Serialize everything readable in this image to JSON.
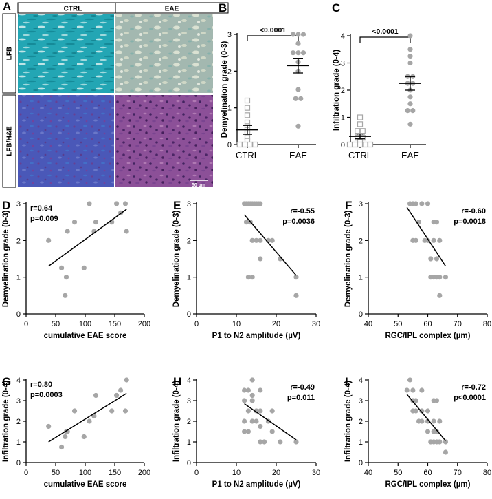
{
  "chart_data": [
    {
      "id": "A",
      "type": "image-panel",
      "label": "A",
      "column_headers": [
        "CTRL",
        "EAE"
      ],
      "row_labels": [
        "LFB",
        "LFB/H&E"
      ],
      "scale_bar": "50 µm",
      "colors": {
        "lfb_ctrl": "#23a6b4",
        "lfb_eae": "#a3b8b0",
        "he_ctrl": "#4a58b8",
        "he_eae": "#8c5098"
      }
    },
    {
      "id": "B",
      "type": "scatter",
      "label": "B",
      "ylabel": "Demyelination grade (0-3)",
      "categories": [
        "CTRL",
        "EAE"
      ],
      "ylim": [
        0,
        3
      ],
      "yticks": [
        0,
        1,
        2,
        3
      ],
      "pvalue": "<0.0001",
      "groups": [
        {
          "name": "CTRL",
          "marker": "open-square",
          "mean": 0.4,
          "sem": 0.12,
          "values": [
            1.2,
            1.0,
            0.8,
            0.6,
            0.5,
            0.4,
            0.3,
            0.2,
            0.1,
            0,
            0,
            0,
            0
          ]
        },
        {
          "name": "EAE",
          "marker": "filled-circle",
          "mean": 2.15,
          "sem": 0.2,
          "values": [
            3,
            3,
            3,
            2.75,
            2.5,
            2.5,
            2.5,
            2.25,
            2,
            1.5,
            1.25,
            1.25,
            0.5
          ]
        }
      ]
    },
    {
      "id": "C",
      "type": "scatter",
      "label": "C",
      "ylabel": "Infiltration grade (0-4)",
      "categories": [
        "CTRL",
        "EAE"
      ],
      "ylim": [
        0,
        4
      ],
      "yticks": [
        0,
        1,
        2,
        3,
        4
      ],
      "pvalue": "<0.0001",
      "groups": [
        {
          "name": "CTRL",
          "marker": "open-square",
          "mean": 0.3,
          "sem": 0.09,
          "values": [
            1.0,
            0.75,
            0.5,
            0.5,
            0.3,
            0.25,
            0.25,
            0.1,
            0,
            0,
            0,
            0,
            0
          ]
        },
        {
          "name": "EAE",
          "marker": "filled-circle",
          "mean": 2.25,
          "sem": 0.25,
          "values": [
            4,
            3.5,
            3.25,
            3,
            2.5,
            2.5,
            2.25,
            2.25,
            2,
            1.75,
            1.5,
            1.25,
            1.25,
            0.75
          ]
        }
      ]
    },
    {
      "id": "D",
      "type": "scatter",
      "label": "D",
      "xlabel": "cumulative EAE score",
      "ylabel": "Demyelination grade (0-3)",
      "xlim": [
        0,
        200
      ],
      "xticks": [
        0,
        50,
        100,
        150,
        200
      ],
      "ylim": [
        0,
        3
      ],
      "yticks": [
        0,
        1,
        2,
        3
      ],
      "r": "r=0.64",
      "p": "p=0.009",
      "stats_position": "top-left",
      "points": [
        [
          38,
          2
        ],
        [
          60,
          1.25
        ],
        [
          66,
          0.5
        ],
        [
          68,
          1
        ],
        [
          70,
          2.25
        ],
        [
          82,
          2.5
        ],
        [
          98,
          1.25
        ],
        [
          107,
          3
        ],
        [
          115,
          2.25
        ],
        [
          118,
          2.5
        ],
        [
          145,
          2.5
        ],
        [
          153,
          3
        ],
        [
          160,
          2.75
        ],
        [
          168,
          3
        ],
        [
          170,
          2.25
        ]
      ],
      "fit": [
        [
          38,
          1.3
        ],
        [
          170,
          2.85
        ]
      ]
    },
    {
      "id": "E",
      "type": "scatter",
      "label": "E",
      "xlabel": "P1 to N2 amplitude (µV)",
      "ylabel": "Demyelination grade (0-3)",
      "xlim": [
        0,
        30
      ],
      "xticks": [
        0,
        10,
        20,
        30
      ],
      "ylim": [
        0,
        3
      ],
      "yticks": [
        0,
        1,
        2,
        3
      ],
      "r": "r=-0.55",
      "p": "p=0.0036",
      "stats_position": "top-right",
      "points": [
        [
          12,
          3
        ],
        [
          12.5,
          3
        ],
        [
          13,
          3
        ],
        [
          13.5,
          3
        ],
        [
          14,
          3
        ],
        [
          14.5,
          3
        ],
        [
          15,
          3
        ],
        [
          15.5,
          3
        ],
        [
          16,
          3
        ],
        [
          12.5,
          2.5
        ],
        [
          13.5,
          2.5
        ],
        [
          14,
          2
        ],
        [
          15,
          2
        ],
        [
          16,
          2
        ],
        [
          18,
          2
        ],
        [
          19,
          2
        ],
        [
          16,
          1.5
        ],
        [
          21,
          1.5
        ],
        [
          13,
          1
        ],
        [
          14,
          1
        ],
        [
          25,
          1
        ],
        [
          25,
          0.5
        ]
      ],
      "fit": [
        [
          12,
          2.7
        ],
        [
          25,
          1.05
        ]
      ]
    },
    {
      "id": "F",
      "type": "scatter",
      "label": "F",
      "xlabel": "RGC/IPL complex (µm)",
      "ylabel": "Demyelination grade (0-3)",
      "xlim": [
        40,
        80
      ],
      "xticks": [
        40,
        50,
        60,
        70,
        80
      ],
      "ylim": [
        0,
        3
      ],
      "yticks": [
        0,
        1,
        2,
        3
      ],
      "r": "r=-0.60",
      "p": "p=0.0018",
      "stats_position": "top-right",
      "points": [
        [
          54,
          3
        ],
        [
          55,
          3
        ],
        [
          56,
          3
        ],
        [
          58,
          3
        ],
        [
          60,
          3
        ],
        [
          55,
          2
        ],
        [
          56,
          2
        ],
        [
          59,
          2
        ],
        [
          60,
          2
        ],
        [
          62,
          2
        ],
        [
          64,
          2
        ],
        [
          57,
          2.5
        ],
        [
          62,
          2.5
        ],
        [
          63,
          2.5
        ],
        [
          61,
          1.5
        ],
        [
          63,
          1.5
        ],
        [
          61,
          1
        ],
        [
          62,
          1
        ],
        [
          63,
          1
        ],
        [
          64,
          1
        ],
        [
          66,
          1
        ],
        [
          64,
          0.5
        ]
      ],
      "fit": [
        [
          53,
          2.9
        ],
        [
          66,
          1.3
        ]
      ]
    },
    {
      "id": "G",
      "type": "scatter",
      "label": "G",
      "xlabel": "cumulative EAE score",
      "ylabel": "Infiltration grade (0-4)",
      "xlim": [
        0,
        200
      ],
      "xticks": [
        0,
        50,
        100,
        150,
        200
      ],
      "ylim": [
        0,
        4
      ],
      "yticks": [
        0,
        1,
        2,
        3,
        4
      ],
      "r": "r=0.80",
      "p": "p=0.0003",
      "stats_position": "top-left",
      "points": [
        [
          38,
          1.75
        ],
        [
          60,
          0.75
        ],
        [
          66,
          1.25
        ],
        [
          68,
          1.5
        ],
        [
          70,
          1.5
        ],
        [
          82,
          2.5
        ],
        [
          98,
          1.25
        ],
        [
          107,
          2
        ],
        [
          115,
          2.25
        ],
        [
          118,
          3.25
        ],
        [
          145,
          2.5
        ],
        [
          153,
          3.25
        ],
        [
          160,
          3.5
        ],
        [
          168,
          2.5
        ],
        [
          170,
          4
        ]
      ],
      "fit": [
        [
          38,
          1.0
        ],
        [
          170,
          3.35
        ]
      ]
    },
    {
      "id": "H",
      "type": "scatter",
      "label": "H",
      "xlabel": "P1 to N2 amplitude (µV)",
      "ylabel": "Infiltration grade (0-4)",
      "xlim": [
        0,
        30
      ],
      "xticks": [
        0,
        10,
        20,
        30
      ],
      "ylim": [
        0,
        4
      ],
      "yticks": [
        0,
        1,
        2,
        3,
        4
      ],
      "r": "r=-0.49",
      "p": "p=0.011",
      "stats_position": "top-right",
      "points": [
        [
          12,
          3.5
        ],
        [
          13,
          3.5
        ],
        [
          14,
          4
        ],
        [
          14,
          3.25
        ],
        [
          16,
          3.5
        ],
        [
          12,
          3
        ],
        [
          14,
          3
        ],
        [
          15,
          2.5
        ],
        [
          16,
          2.5
        ],
        [
          19,
          2.5
        ],
        [
          13,
          2.5
        ],
        [
          12,
          2
        ],
        [
          14,
          2
        ],
        [
          15,
          2
        ],
        [
          16,
          1.75
        ],
        [
          18,
          2
        ],
        [
          12,
          1.5
        ],
        [
          13,
          1.5
        ],
        [
          16,
          1
        ],
        [
          17,
          1
        ],
        [
          21,
          1
        ],
        [
          25,
          1
        ],
        [
          19,
          1.5
        ]
      ],
      "fit": [
        [
          12,
          2.85
        ],
        [
          25,
          1.1
        ]
      ]
    },
    {
      "id": "I",
      "type": "scatter",
      "label": "I",
      "xlabel": "RGC/IPL complex (µm)",
      "ylabel": "Infiltration grade (0-4)",
      "xlim": [
        40,
        80
      ],
      "xticks": [
        40,
        50,
        60,
        70,
        80
      ],
      "ylim": [
        0,
        4
      ],
      "yticks": [
        0,
        1,
        2,
        3,
        4
      ],
      "r": "r=-0.72",
      "p": "p<0.0001",
      "stats_position": "top-right",
      "points": [
        [
          54,
          4
        ],
        [
          53,
          3.5
        ],
        [
          55,
          3.5
        ],
        [
          58,
          3.5
        ],
        [
          55,
          3
        ],
        [
          56,
          3
        ],
        [
          62,
          3
        ],
        [
          63,
          3
        ],
        [
          55,
          2.5
        ],
        [
          56,
          2.5
        ],
        [
          58,
          2.5
        ],
        [
          60,
          2.5
        ],
        [
          57,
          2
        ],
        [
          58,
          2
        ],
        [
          60,
          2
        ],
        [
          62,
          2
        ],
        [
          64,
          2
        ],
        [
          60,
          1.5
        ],
        [
          62,
          1.5
        ],
        [
          63,
          1.5
        ],
        [
          61,
          1
        ],
        [
          62,
          1
        ],
        [
          63,
          1
        ],
        [
          64,
          1
        ],
        [
          66,
          1
        ],
        [
          66,
          0.5
        ]
      ],
      "fit": [
        [
          53,
          3.3
        ],
        [
          66,
          1.05
        ]
      ]
    }
  ],
  "colors": {
    "point": "#a6a6a6",
    "square_stroke": "#a6a6a6",
    "line": "#000000",
    "axis": "#000000"
  }
}
